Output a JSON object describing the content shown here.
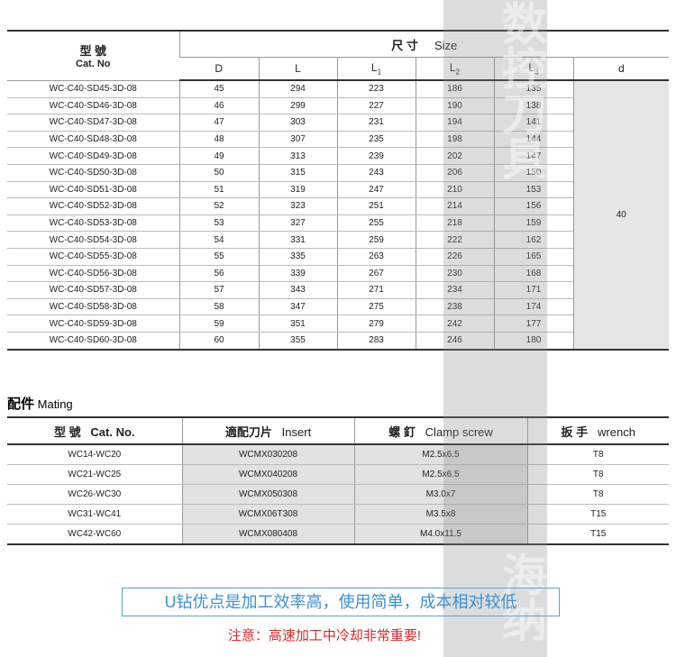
{
  "table1": {
    "cat_header": {
      "zh": "型 號",
      "en": "Cat. No"
    },
    "size_header": {
      "zh": "尺 寸",
      "en": "Size"
    },
    "columns": [
      {
        "base": "D"
      },
      {
        "base": "L"
      },
      {
        "base": "L",
        "sub": "1"
      },
      {
        "base": "L",
        "sub": "2"
      },
      {
        "base": "L",
        "sub": "3"
      },
      {
        "base": "d"
      }
    ],
    "rows": [
      [
        "WC-C40-SD45-3D-08",
        45,
        294,
        223,
        186,
        135
      ],
      [
        "WC-C40-SD46-3D-08",
        46,
        299,
        227,
        190,
        138
      ],
      [
        "WC-C40-SD47-3D-08",
        47,
        303,
        231,
        194,
        141
      ],
      [
        "WC-C40-SD48-3D-08",
        48,
        307,
        235,
        198,
        144
      ],
      [
        "WC-C40-SD49-3D-08",
        49,
        313,
        239,
        202,
        147
      ],
      [
        "WC-C40-SD50-3D-08",
        50,
        315,
        243,
        206,
        150
      ],
      [
        "WC-C40-SD51-3D-08",
        51,
        319,
        247,
        210,
        153
      ],
      [
        "WC-C40-SD52-3D-08",
        52,
        323,
        251,
        214,
        156
      ],
      [
        "WC-C40-SD53-3D-08",
        53,
        327,
        255,
        218,
        159
      ],
      [
        "WC-C40-SD54-3D-08",
        54,
        331,
        259,
        222,
        162
      ],
      [
        "WC-C40-SD55-3D-08",
        55,
        335,
        263,
        226,
        165
      ],
      [
        "WC-C40-SD56-3D-08",
        56,
        339,
        267,
        230,
        168
      ],
      [
        "WC-C40-SD57-3D-08",
        57,
        343,
        271,
        234,
        171
      ],
      [
        "WC-C40-SD58-3D-08",
        58,
        347,
        275,
        238,
        174
      ],
      [
        "WC-C40-SD59-3D-08",
        59,
        351,
        279,
        242,
        177
      ],
      [
        "WC-C40-SD60-3D-08",
        60,
        355,
        283,
        246,
        180
      ]
    ],
    "d_value": 40
  },
  "table2": {
    "title": {
      "zh": "配件",
      "en": "Mating"
    },
    "headers": [
      {
        "zh": "型 號",
        "en": "Cat. No."
      },
      {
        "zh": "適配刀片",
        "en": "Insert"
      },
      {
        "zh": "螺 釘",
        "en": "Clamp screw"
      },
      {
        "zh": "扳 手",
        "en": "wrench"
      }
    ],
    "rows": [
      [
        "WC14-WC20",
        "WCMX030208",
        "M2.5x6.5",
        "T8"
      ],
      [
        "WC21-WC25",
        "WCMX040208",
        "M2.5x6.5",
        "T8"
      ],
      [
        "WC26-WC30",
        "WCMX050308",
        "M3.0x7",
        "T8"
      ],
      [
        "WC31-WC41",
        "WCMX06T308",
        "M3.5x8",
        "T15"
      ],
      [
        "WC42-WC60",
        "WCMX080408",
        "M4.0x11.5",
        "T15"
      ]
    ]
  },
  "note": "U钻优点是加工效率高，使用简单，成本相对较低",
  "warning": "注意：高速加工中冷却非常重要!",
  "watermark": {
    "top": "数控刀具",
    "bottom": "海纳"
  }
}
